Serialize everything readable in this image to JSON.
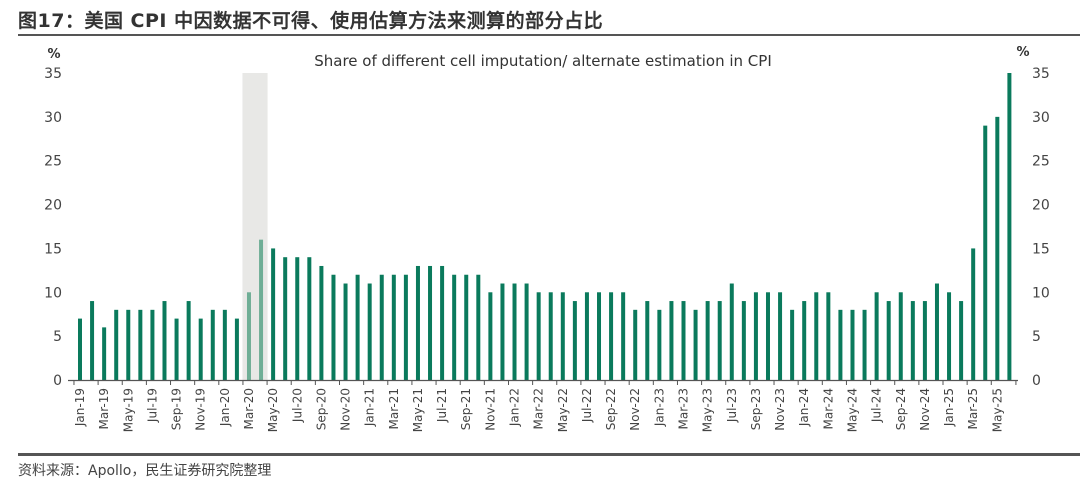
{
  "header": {
    "figure_title": "图17：美国 CPI 中因数据不可得、使用估算方法来测算的部分占比"
  },
  "footer": {
    "source": "资料来源：Apollo，民生证券研究院整理"
  },
  "colors": {
    "bar": "#0a7a5c",
    "bar_highlight": "#6fae96",
    "shade": "#e8e8e6",
    "axis": "#555555"
  },
  "chart_data": {
    "type": "bar",
    "title": "Share of different cell imputation/ alternate estimation in CPI",
    "ylabel_left": "%",
    "ylabel_right": "%",
    "xlabel": "",
    "ylim": [
      0,
      35
    ],
    "yticks": [
      0,
      5,
      10,
      15,
      20,
      25,
      30,
      35
    ],
    "grid": false,
    "shaded_period": [
      "Mar-20",
      "Apr-20"
    ],
    "categories": [
      "Jan-19",
      "Feb-19",
      "Mar-19",
      "Apr-19",
      "May-19",
      "Jun-19",
      "Jul-19",
      "Aug-19",
      "Sep-19",
      "Oct-19",
      "Nov-19",
      "Dec-19",
      "Jan-20",
      "Feb-20",
      "Mar-20",
      "Apr-20",
      "May-20",
      "Jun-20",
      "Jul-20",
      "Aug-20",
      "Sep-20",
      "Oct-20",
      "Nov-20",
      "Dec-20",
      "Jan-21",
      "Feb-21",
      "Mar-21",
      "Apr-21",
      "May-21",
      "Jun-21",
      "Jul-21",
      "Aug-21",
      "Sep-21",
      "Oct-21",
      "Nov-21",
      "Dec-21",
      "Jan-22",
      "Feb-22",
      "Mar-22",
      "Apr-22",
      "May-22",
      "Jun-22",
      "Jul-22",
      "Aug-22",
      "Sep-22",
      "Oct-22",
      "Nov-22",
      "Dec-22",
      "Jan-23",
      "Feb-23",
      "Mar-23",
      "Apr-23",
      "May-23",
      "Jun-23",
      "Jul-23",
      "Aug-23",
      "Sep-23",
      "Oct-23",
      "Nov-23",
      "Dec-23",
      "Jan-24",
      "Feb-24",
      "Mar-24",
      "Apr-24",
      "May-24",
      "Jun-24",
      "Jul-24",
      "Aug-24",
      "Sep-24",
      "Oct-24",
      "Nov-24",
      "Dec-24",
      "Jan-25",
      "Feb-25",
      "Mar-25",
      "Apr-25",
      "May-25",
      "Jun-25"
    ],
    "values": [
      7,
      9,
      6,
      8,
      8,
      8,
      8,
      9,
      7,
      9,
      7,
      8,
      8,
      7,
      10,
      16,
      15,
      14,
      14,
      14,
      13,
      12,
      11,
      12,
      11,
      12,
      12,
      12,
      13,
      13,
      13,
      12,
      12,
      12,
      10,
      11,
      11,
      11,
      10,
      10,
      10,
      9,
      10,
      10,
      10,
      10,
      8,
      9,
      8,
      9,
      9,
      8,
      9,
      9,
      11,
      9,
      10,
      10,
      10,
      8,
      9,
      10,
      10,
      8,
      8,
      8,
      10,
      9,
      10,
      9,
      9,
      11,
      10,
      9,
      15,
      29,
      30,
      35
    ],
    "highlighted": [
      "Mar-20",
      "Apr-20"
    ],
    "x_tick_labels": [
      "Jan-19",
      "Mar-19",
      "May-19",
      "Jul-19",
      "Sep-19",
      "Nov-19",
      "Jan-20",
      "Mar-20",
      "May-20",
      "Jul-20",
      "Sep-20",
      "Nov-20",
      "Jan-21",
      "Mar-21",
      "May-21",
      "Jul-21",
      "Sep-21",
      "Nov-21",
      "Jan-22",
      "Mar-22",
      "May-22",
      "Jul-22",
      "Sep-22",
      "Nov-22",
      "Jan-23",
      "Mar-23",
      "May-23",
      "Jul-23",
      "Sep-23",
      "Nov-23",
      "Jan-24",
      "Mar-24",
      "May-24",
      "Jul-24",
      "Sep-24",
      "Nov-24",
      "Jan-25",
      "Mar-25",
      "May-25"
    ]
  }
}
